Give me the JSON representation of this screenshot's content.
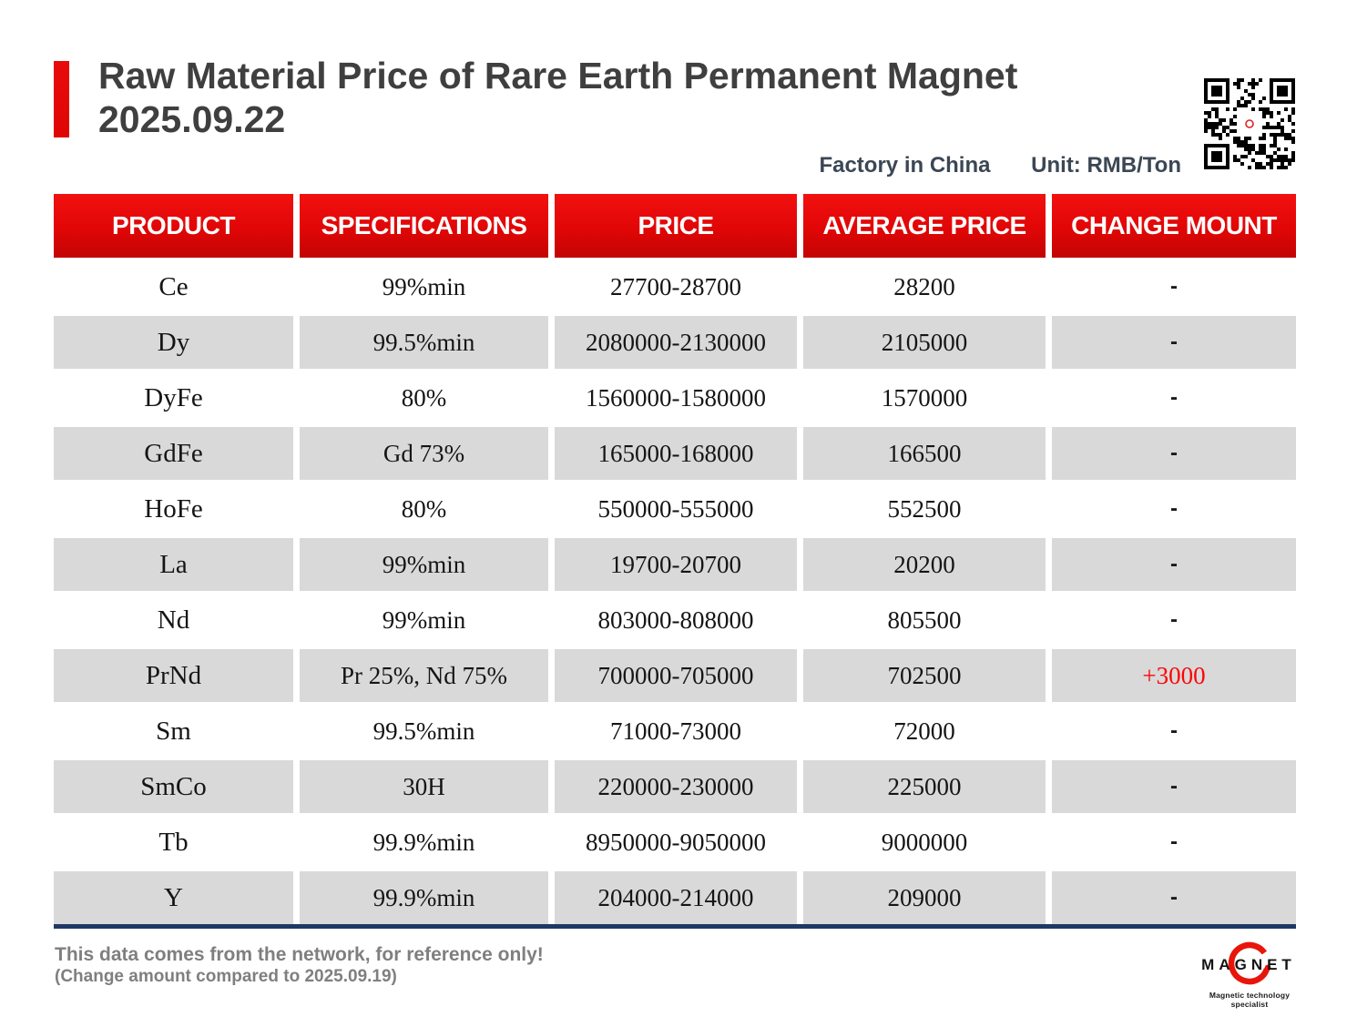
{
  "header": {
    "title_line1": "Raw Material Price of Rare Earth Permanent Magnet",
    "title_line2": "2025.09.22",
    "meta_left": "Factory in China",
    "meta_right": "Unit: RMB/Ton",
    "qr_icon": "qr-code"
  },
  "table": {
    "columns": [
      "PRODUCT",
      "SPECIFICATIONS",
      "PRICE",
      "AVERAGE PRICE",
      "CHANGE MOUNT"
    ],
    "rows": [
      {
        "product": "Ce",
        "spec": "99%min",
        "price": "27700-28700",
        "avg": "28200",
        "change": "-"
      },
      {
        "product": "Dy",
        "spec": "99.5%min",
        "price": "2080000-2130000",
        "avg": "2105000",
        "change": "-"
      },
      {
        "product": "DyFe",
        "spec": "80%",
        "price": "1560000-1580000",
        "avg": "1570000",
        "change": "-"
      },
      {
        "product": "GdFe",
        "spec": "Gd 73%",
        "price": "165000-168000",
        "avg": "166500",
        "change": "-"
      },
      {
        "product": "HoFe",
        "spec": "80%",
        "price": "550000-555000",
        "avg": "552500",
        "change": "-"
      },
      {
        "product": "La",
        "spec": "99%min",
        "price": "19700-20700",
        "avg": "20200",
        "change": "-"
      },
      {
        "product": "Nd",
        "spec": "99%min",
        "price": "803000-808000",
        "avg": "805500",
        "change": "-"
      },
      {
        "product": "PrNd",
        "spec": "Pr 25%, Nd 75%",
        "price": "700000-705000",
        "avg": "702500",
        "change": "+3000"
      },
      {
        "product": "Sm",
        "spec": "99.5%min",
        "price": "71000-73000",
        "avg": "72000",
        "change": "-"
      },
      {
        "product": "SmCo",
        "spec": "30H",
        "price": "220000-230000",
        "avg": "225000",
        "change": "-"
      },
      {
        "product": "Tb",
        "spec": "99.9%min",
        "price": "8950000-9050000",
        "avg": "9000000",
        "change": "-"
      },
      {
        "product": "Y",
        "spec": "99.9%min",
        "price": "204000-214000",
        "avg": "209000",
        "change": "-"
      }
    ]
  },
  "footer": {
    "note_line1": "This data comes from the network, for reference only!",
    "note_line2": "(Change amount compared to 2025.09.19)",
    "logo_text": "MAGNET",
    "logo_tagline": "Magnetic technology specialist"
  },
  "colors": {
    "accent_red": "#e10606",
    "row_gray": "#d9d9d9",
    "change_up_red": "#fb0606",
    "bottom_border_navy": "#1f3864",
    "title_gray": "#3f3f3f",
    "note_gray": "#7f7f7f"
  }
}
